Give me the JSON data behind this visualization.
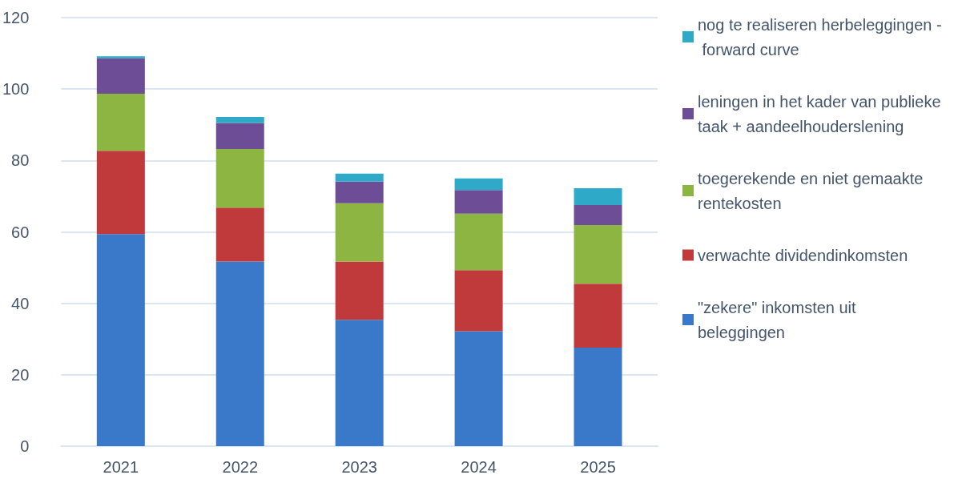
{
  "chart_data": {
    "type": "bar",
    "stacked": true,
    "categories": [
      "2021",
      "2022",
      "2023",
      "2024",
      "2025"
    ],
    "series": [
      {
        "name": "\"zekere\" inkomsten uit beleggingen",
        "color": "#3a78c9",
        "values": [
          59.4,
          51.7,
          35.4,
          32.2,
          27.6
        ]
      },
      {
        "name": "verwachte dividendinkomsten",
        "color": "#c0393b",
        "values": [
          23.3,
          15.1,
          16.3,
          17.1,
          17.9
        ]
      },
      {
        "name": "toegerekende en niet gemaakte rentekosten",
        "color": "#8db542",
        "values": [
          16.0,
          16.4,
          16.3,
          15.8,
          16.4
        ]
      },
      {
        "name": "leningen in het kader van publieke taak + aandeelhouderslening",
        "color": "#6d4e96",
        "values": [
          9.9,
          7.3,
          6.1,
          6.6,
          5.6
        ]
      },
      {
        "name": "nog te realiseren herbeleggingen - forward curve",
        "color": "#2ea9c7",
        "values": [
          0.6,
          1.7,
          2.2,
          3.3,
          4.7
        ]
      }
    ],
    "ylim": [
      0,
      120
    ],
    "yticks": [
      0,
      20,
      40,
      60,
      80,
      100,
      120
    ],
    "grid": "y",
    "legend": "right"
  }
}
